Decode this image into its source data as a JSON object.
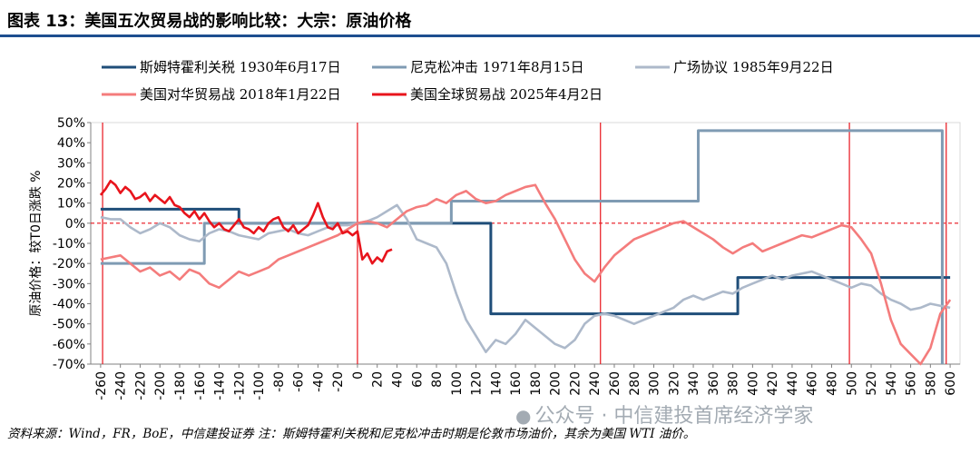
{
  "header": {
    "title": "图表 13：美国五次贸易战的影响比较：大宗：原油价格"
  },
  "footer": {
    "source": "资料来源：Wind，FR，BoE，中信建投证券 注：斯姆特霍利关税和尼克松冲击时期是伦敦市场油价，其余为美国 WTI 油价。"
  },
  "watermark": {
    "icon": "wechat-icon",
    "text": "公众号 · 中信建投首席经济学家"
  },
  "chart_data": {
    "type": "line",
    "ylabel": "原油价格：较T0日涨跌 %",
    "xlabel": "",
    "xlim": [
      -270,
      610
    ],
    "ylim": [
      -70,
      50
    ],
    "x_ticks": [
      -260,
      -240,
      -220,
      -200,
      -180,
      -160,
      -140,
      -120,
      -100,
      -80,
      -60,
      -40,
      -20,
      0,
      20,
      40,
      60,
      80,
      100,
      120,
      140,
      160,
      180,
      200,
      220,
      240,
      260,
      280,
      300,
      320,
      340,
      360,
      380,
      400,
      420,
      440,
      460,
      480,
      500,
      520,
      540,
      560,
      580,
      600
    ],
    "y_ticks": [
      50,
      40,
      30,
      20,
      10,
      0,
      -10,
      -20,
      -30,
      -40,
      -50,
      -60,
      -70
    ],
    "y_tick_labels": [
      "50%",
      "40%",
      "30%",
      "20%",
      "10%",
      "0%",
      "-10%",
      "-20%",
      "-30%",
      "-40%",
      "-50%",
      "-60%",
      "-70%"
    ],
    "zero_line": "dashed-red",
    "vlines": [
      -258,
      0,
      246,
      498,
      596
    ],
    "legend_position": "top",
    "series": [
      {
        "name": "斯姆特霍利关税 1930年6月17日",
        "color": "#1f4e79",
        "style": "step",
        "x": [
          -260,
          -120,
          -120,
          0,
          0,
          135,
          135,
          385,
          385,
          600
        ],
        "y": [
          7,
          7,
          0,
          0,
          0,
          0,
          -45,
          -45,
          -27,
          -27
        ]
      },
      {
        "name": "尼克松冲击 1971年8月15日",
        "color": "#7f9bb3",
        "style": "step",
        "x": [
          -260,
          -155,
          -155,
          95,
          95,
          345,
          345,
          592,
          592
        ],
        "y": [
          -20,
          -20,
          0,
          0,
          11,
          11,
          46,
          46,
          -70
        ]
      },
      {
        "name": "广场协议 1985年9月22日",
        "color": "#adb9ca",
        "style": "line",
        "x": [
          -260,
          -250,
          -240,
          -230,
          -220,
          -210,
          -200,
          -190,
          -180,
          -170,
          -160,
          -150,
          -140,
          -130,
          -120,
          -110,
          -100,
          -90,
          -80,
          -70,
          -60,
          -50,
          -40,
          -30,
          -20,
          -10,
          0,
          10,
          20,
          30,
          40,
          50,
          60,
          70,
          80,
          90,
          100,
          110,
          120,
          130,
          140,
          150,
          160,
          170,
          180,
          190,
          200,
          210,
          220,
          230,
          240,
          250,
          260,
          270,
          280,
          290,
          300,
          310,
          320,
          330,
          340,
          350,
          360,
          370,
          380,
          390,
          400,
          410,
          420,
          430,
          440,
          450,
          460,
          470,
          480,
          490,
          500,
          510,
          520,
          530,
          540,
          550,
          560,
          570,
          580,
          590,
          600
        ],
        "y": [
          3,
          2,
          2,
          -2,
          -5,
          -3,
          0,
          -2,
          -6,
          -8,
          -9,
          -5,
          -3,
          -4,
          -6,
          -7,
          -8,
          -5,
          -4,
          -3,
          -5,
          -6,
          -4,
          -2,
          -1,
          -1,
          0,
          1,
          3,
          6,
          9,
          2,
          -8,
          -10,
          -12,
          -20,
          -35,
          -48,
          -56,
          -64,
          -58,
          -60,
          -55,
          -48,
          -52,
          -56,
          -60,
          -62,
          -58,
          -50,
          -46,
          -45,
          -46,
          -48,
          -50,
          -48,
          -46,
          -44,
          -42,
          -38,
          -36,
          -38,
          -36,
          -34,
          -35,
          -32,
          -30,
          -28,
          -26,
          -28,
          -26,
          -25,
          -24,
          -26,
          -28,
          -30,
          -32,
          -30,
          -31,
          -35,
          -38,
          -40,
          -43,
          -42,
          -40,
          -41,
          -42
        ]
      },
      {
        "name": "美国对华贸易战 2018年1月22日",
        "color": "#f47c7c",
        "style": "line",
        "x": [
          -260,
          -250,
          -240,
          -230,
          -220,
          -210,
          -200,
          -190,
          -180,
          -170,
          -160,
          -150,
          -140,
          -130,
          -120,
          -110,
          -100,
          -90,
          -80,
          -70,
          -60,
          -50,
          -40,
          -30,
          -20,
          -10,
          0,
          10,
          20,
          30,
          40,
          50,
          60,
          70,
          80,
          90,
          100,
          110,
          120,
          130,
          140,
          150,
          160,
          170,
          180,
          190,
          200,
          210,
          220,
          230,
          240,
          250,
          260,
          270,
          280,
          290,
          300,
          310,
          320,
          330,
          340,
          350,
          360,
          370,
          380,
          390,
          400,
          410,
          420,
          430,
          440,
          450,
          460,
          470,
          480,
          490,
          500,
          510,
          520,
          530,
          540,
          550,
          560,
          570,
          580,
          590,
          600
        ],
        "y": [
          -18,
          -17,
          -16,
          -20,
          -24,
          -22,
          -26,
          -24,
          -28,
          -23,
          -25,
          -30,
          -32,
          -28,
          -24,
          -26,
          -24,
          -22,
          -18,
          -16,
          -14,
          -12,
          -10,
          -8,
          -6,
          -3,
          0,
          1,
          0,
          -2,
          2,
          6,
          8,
          9,
          12,
          10,
          14,
          16,
          12,
          10,
          11,
          14,
          16,
          18,
          19,
          10,
          2,
          -8,
          -18,
          -25,
          -29,
          -22,
          -16,
          -12,
          -8,
          -6,
          -4,
          -2,
          0,
          1,
          -2,
          -5,
          -8,
          -12,
          -15,
          -12,
          -10,
          -14,
          -12,
          -10,
          -8,
          -6,
          -7,
          -5,
          -3,
          -1,
          -2,
          -8,
          -15,
          -30,
          -48,
          -60,
          -65,
          -70,
          -62,
          -45,
          -38
        ]
      },
      {
        "name": "美国全球贸易战 2025年4月2日",
        "color": "#e8141c",
        "style": "line",
        "x": [
          -260,
          -255,
          -250,
          -245,
          -240,
          -235,
          -230,
          -225,
          -220,
          -215,
          -210,
          -205,
          -200,
          -195,
          -190,
          -185,
          -180,
          -175,
          -170,
          -165,
          -160,
          -155,
          -150,
          -145,
          -140,
          -135,
          -130,
          -125,
          -120,
          -115,
          -110,
          -105,
          -100,
          -95,
          -90,
          -85,
          -80,
          -75,
          -70,
          -65,
          -60,
          -55,
          -50,
          -45,
          -40,
          -35,
          -30,
          -25,
          -20,
          -15,
          -10,
          -5,
          0,
          5,
          10,
          15,
          20,
          25,
          30,
          35
        ],
        "y": [
          14,
          17,
          21,
          19,
          15,
          18,
          16,
          12,
          13,
          15,
          11,
          14,
          12,
          10,
          13,
          9,
          8,
          5,
          3,
          6,
          2,
          5,
          1,
          -2,
          0,
          -3,
          -4,
          -1,
          2,
          -2,
          -3,
          -5,
          -2,
          -4,
          0,
          2,
          3,
          -2,
          -4,
          -1,
          -5,
          -3,
          -1,
          4,
          10,
          3,
          -2,
          -3,
          0,
          -5,
          -4,
          -6,
          -4,
          -18,
          -15,
          -20,
          -17,
          -19,
          -14,
          -13
        ]
      }
    ]
  }
}
